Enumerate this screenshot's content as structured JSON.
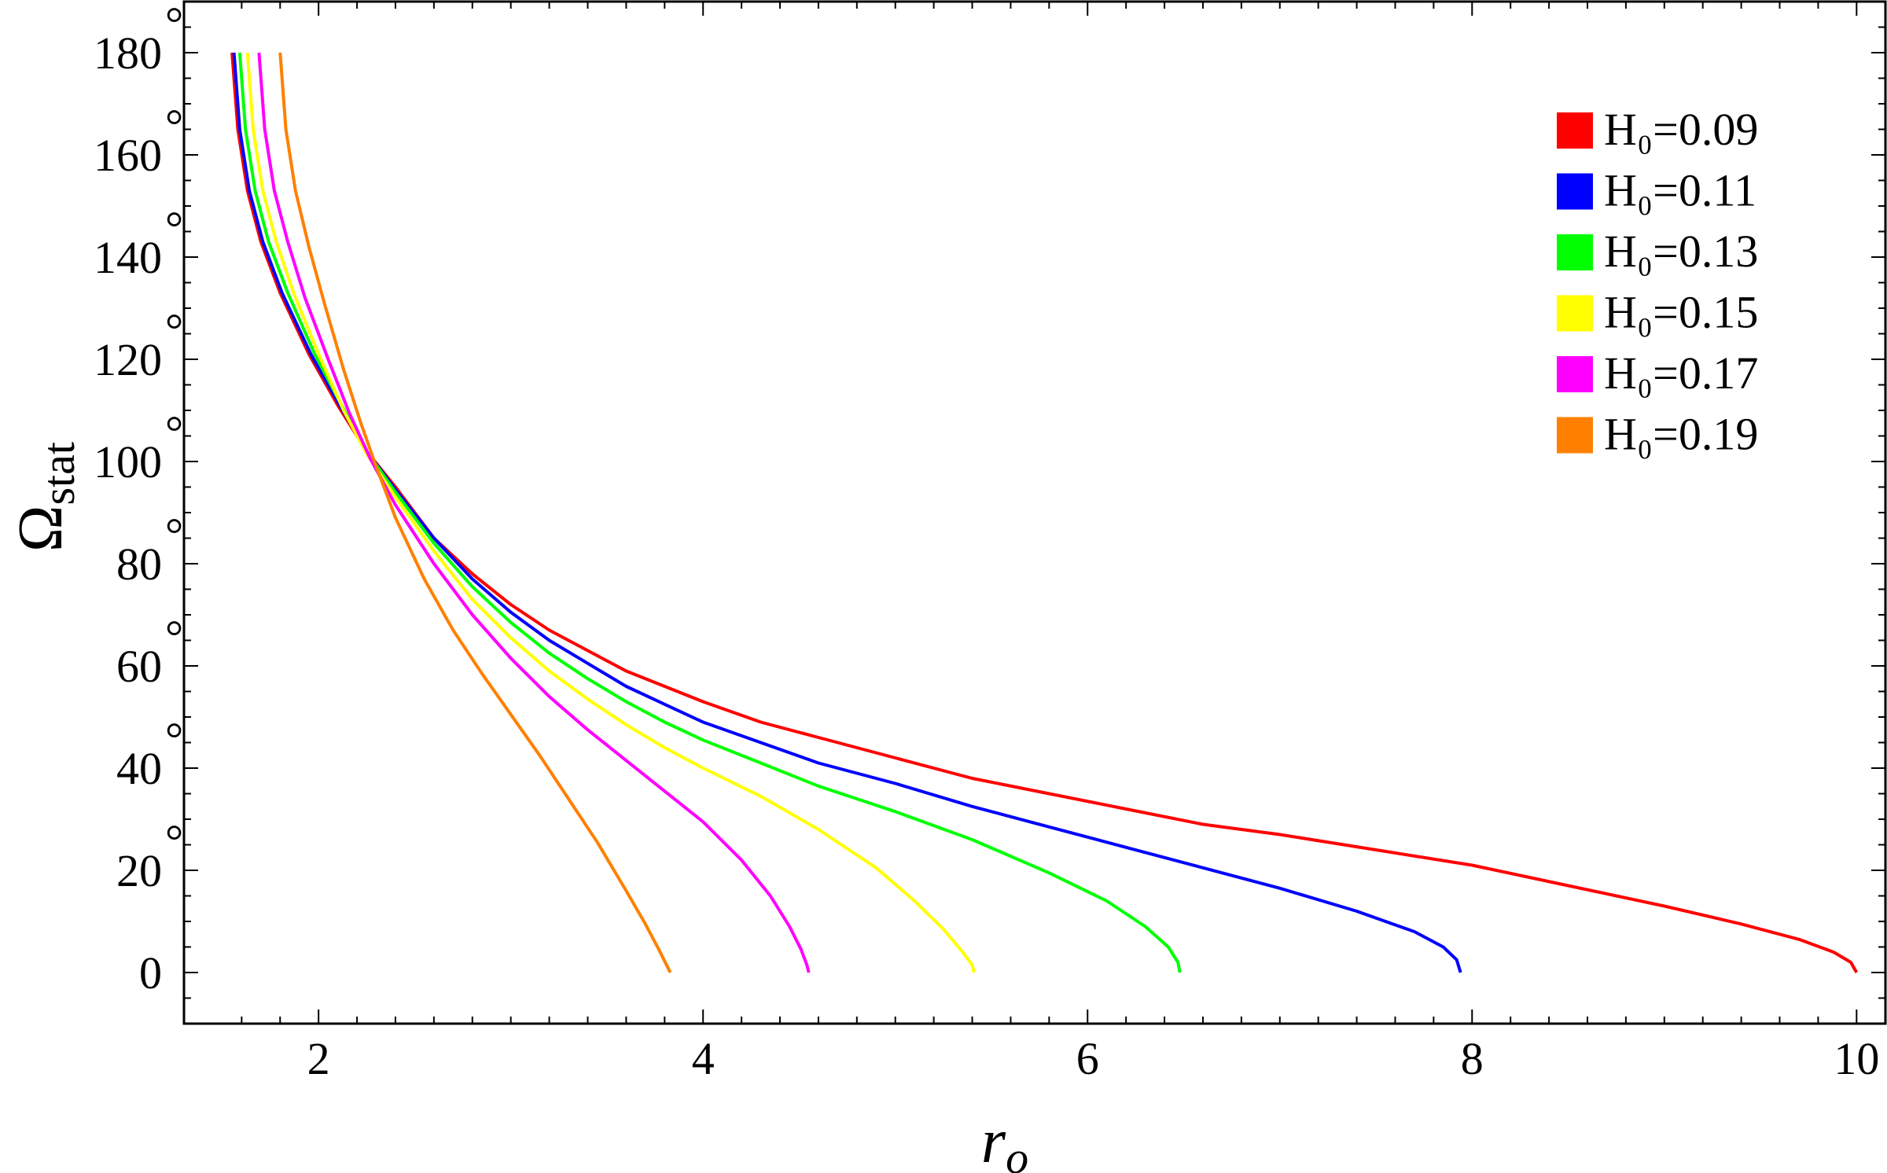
{
  "chart_data": {
    "type": "line",
    "xlabel": "r",
    "xlabel_sub": "o",
    "ylabel": "Ω",
    "ylabel_sub": "stat",
    "xlim": [
      1.3,
      10.15
    ],
    "ylim": [
      -10,
      190
    ],
    "x_ticks": [
      2,
      4,
      6,
      8,
      10
    ],
    "x_tick_labels": [
      "2",
      "4",
      "6",
      "8",
      "10"
    ],
    "y_ticks": [
      0,
      20,
      40,
      60,
      80,
      100,
      120,
      140,
      160,
      180
    ],
    "y_tick_labels": [
      "0",
      "20",
      "40",
      "60",
      "80",
      "100",
      "120",
      "140",
      "160",
      "180"
    ],
    "degree_symbol": "°",
    "grid": false,
    "legend_position": "top-right",
    "series": [
      {
        "name": "H₀=0.09",
        "color": "#ff0000",
        "x": [
          1.55,
          1.58,
          1.63,
          1.7,
          1.8,
          1.95,
          2.1,
          2.25,
          2.4,
          2.6,
          2.8,
          3.0,
          3.2,
          3.4,
          3.6,
          3.8,
          4.0,
          4.3,
          4.6,
          5.0,
          5.4,
          5.8,
          6.2,
          6.6,
          7.0,
          7.5,
          8.0,
          8.5,
          9.0,
          9.4,
          9.7,
          9.88,
          9.97,
          10.0
        ],
        "y": [
          180,
          165,
          153,
          143,
          133,
          121,
          111,
          102,
          95,
          85,
          78,
          72,
          67,
          63,
          59,
          56,
          53,
          49,
          46,
          42,
          38,
          35,
          32,
          29,
          27,
          24,
          21,
          17,
          13,
          9.5,
          6.5,
          4,
          2,
          0
        ]
      },
      {
        "name": "H₀=0.11",
        "color": "#0000ff",
        "x": [
          1.56,
          1.59,
          1.64,
          1.71,
          1.81,
          1.96,
          2.11,
          2.25,
          2.4,
          2.6,
          2.8,
          3.0,
          3.2,
          3.4,
          3.6,
          3.8,
          4.0,
          4.3,
          4.6,
          5.0,
          5.4,
          5.8,
          6.2,
          6.6,
          7.0,
          7.4,
          7.7,
          7.85,
          7.92,
          7.94
        ],
        "y": [
          180,
          165,
          153,
          143,
          133,
          121,
          111,
          102,
          94.5,
          85,
          77,
          70.5,
          65,
          60.5,
          56,
          52.5,
          49,
          45,
          41,
          37,
          32.5,
          28.5,
          24.5,
          20.5,
          16.5,
          12,
          8,
          5,
          2.5,
          0
        ]
      },
      {
        "name": "H₀=0.13",
        "color": "#00ff00",
        "x": [
          1.59,
          1.62,
          1.67,
          1.74,
          1.84,
          1.98,
          2.12,
          2.25,
          2.4,
          2.6,
          2.8,
          3.0,
          3.2,
          3.4,
          3.6,
          3.8,
          4.0,
          4.3,
          4.6,
          5.0,
          5.4,
          5.8,
          6.1,
          6.3,
          6.42,
          6.47,
          6.48
        ],
        "y": [
          180,
          165,
          153,
          143,
          133,
          121,
          111,
          102,
          94,
          84,
          75.5,
          68.5,
          62.5,
          57.5,
          53,
          49,
          45.5,
          41,
          36.5,
          31.5,
          26,
          19.5,
          14,
          9,
          5,
          2,
          0
        ]
      },
      {
        "name": "H₀=0.15",
        "color": "#ffff00",
        "x": [
          1.63,
          1.66,
          1.71,
          1.78,
          1.87,
          2.0,
          2.13,
          2.25,
          2.4,
          2.6,
          2.8,
          3.0,
          3.2,
          3.4,
          3.6,
          3.8,
          4.0,
          4.3,
          4.6,
          4.9,
          5.1,
          5.25,
          5.35,
          5.4,
          5.41
        ],
        "y": [
          180,
          165,
          153,
          143,
          133,
          121,
          110,
          101.5,
          93,
          82.5,
          73,
          65.5,
          59,
          53.5,
          48.5,
          44,
          40,
          34.5,
          28,
          20.5,
          14,
          8.5,
          4,
          1.5,
          0
        ]
      },
      {
        "name": "H₀=0.17",
        "color": "#ff00ff",
        "x": [
          1.69,
          1.72,
          1.77,
          1.84,
          1.93,
          2.05,
          2.16,
          2.27,
          2.4,
          2.6,
          2.8,
          3.0,
          3.2,
          3.4,
          3.6,
          3.8,
          4.0,
          4.2,
          4.35,
          4.45,
          4.51,
          4.54,
          4.55
        ],
        "y": [
          180,
          165,
          153,
          143,
          132,
          120,
          109.5,
          100.5,
          91.5,
          80,
          70,
          61.5,
          54,
          47.5,
          41.5,
          35.5,
          29.5,
          22,
          15,
          9,
          4.5,
          1.5,
          0
        ]
      },
      {
        "name": "H₀=0.19",
        "color": "#ff8000",
        "x": [
          1.8,
          1.83,
          1.88,
          1.95,
          2.03,
          2.13,
          2.22,
          2.3,
          2.4,
          2.55,
          2.7,
          2.85,
          3.0,
          3.15,
          3.3,
          3.45,
          3.6,
          3.7,
          3.77,
          3.81,
          3.83
        ],
        "y": [
          180,
          165,
          153,
          142,
          131,
          118,
          107.5,
          99,
          89,
          77,
          67,
          58.5,
          50.5,
          42.5,
          34,
          25.5,
          16,
          9.5,
          4.5,
          1.5,
          0
        ]
      }
    ]
  }
}
